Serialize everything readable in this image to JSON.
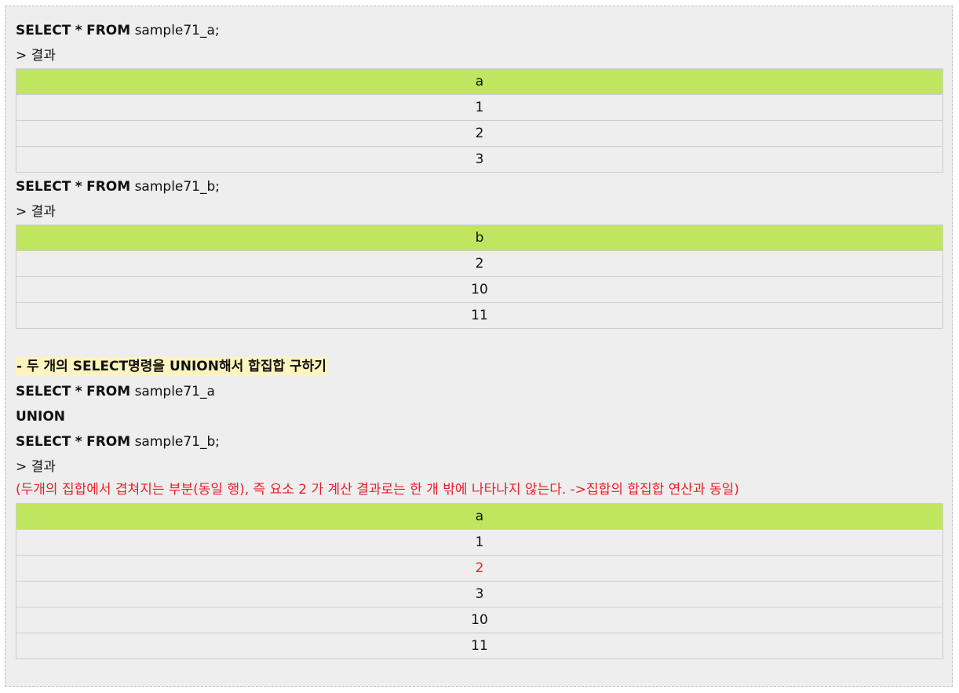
{
  "query1": {
    "kw1": "SELECT",
    "star": "*",
    "kw2": "FROM",
    "table": "sample71_a;"
  },
  "result_label_1": "> 결과",
  "table1": {
    "header": "a",
    "rows": [
      "1",
      "2",
      "3"
    ]
  },
  "query2": {
    "kw1": "SELECT",
    "star": "*",
    "kw2": "FROM",
    "table": "sample71_b;"
  },
  "result_label_2": "> 결과",
  "table2": {
    "header": "b",
    "rows": [
      "2",
      "10",
      "11"
    ]
  },
  "section_heading": "- 두 개의 SELECT명령을 UNION해서 합집합 구하기",
  "query3": {
    "line1_kw1": "SELECT",
    "line1_star": "*",
    "line1_kw2": "FROM",
    "line1_table": "sample71_a",
    "line2": "UNION",
    "line3_kw1": "SELECT",
    "line3_star": "*",
    "line3_kw2": "FROM",
    "line3_table": "sample71_b;"
  },
  "result_label_3": "> 결과",
  "note": "(두개의 집합에서 겹쳐지는 부분(동일 행), 즉 요소 2 가 계산 결과로는 한 개 밖에 나타나지 않는다. ->집합의 합집합 연산과 동일)",
  "table3": {
    "header": "a",
    "rows": [
      "1",
      "2",
      "3",
      "10",
      "11"
    ],
    "highlight_row": "2"
  },
  "colors": {
    "header_bg": "#bfe65e",
    "heading_bg": "#fff4bf",
    "note_red": "#e8202a",
    "panel_bg": "#eeeeee"
  }
}
